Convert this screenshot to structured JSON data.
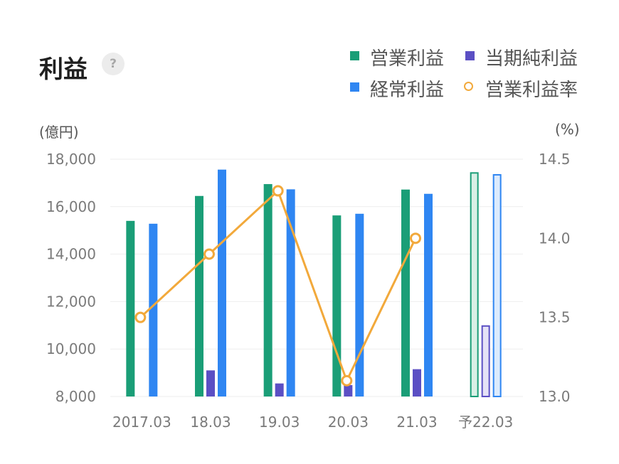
{
  "header": {
    "title": "利益",
    "help_label": "?"
  },
  "legend": [
    {
      "label": "営業利益",
      "color": "#1a9e77"
    },
    {
      "label": "当期純利益",
      "color": "#5b4fc4"
    },
    {
      "label": "経常利益",
      "color": "#2f86f2"
    },
    {
      "label": "営業利益率",
      "color": "#f2a93b"
    }
  ],
  "axes": {
    "left_unit": "(億円)",
    "right_unit": "(%)"
  },
  "chart_data": {
    "type": "bar",
    "categories": [
      "2017.03",
      "18.03",
      "19.03",
      "20.03",
      "21.03",
      "予22.03"
    ],
    "series": [
      {
        "name": "営業利益",
        "type": "bar",
        "axis": "left",
        "color": "#1a9e77",
        "values": [
          15400,
          16450,
          16950,
          15630,
          16720,
          17450
        ],
        "forecast_last": true
      },
      {
        "name": "当期純利益",
        "type": "bar",
        "axis": "left",
        "color": "#5b4fc4",
        "values": [
          null,
          9100,
          8550,
          8480,
          9150,
          11000
        ],
        "forecast_last": true
      },
      {
        "name": "経常利益",
        "type": "bar",
        "axis": "left",
        "color": "#2f86f2",
        "values": [
          15280,
          17560,
          16730,
          15700,
          16540,
          17370
        ],
        "forecast_last": true
      },
      {
        "name": "営業利益率",
        "type": "line",
        "axis": "right",
        "color": "#f2a93b",
        "values": [
          13.5,
          13.9,
          14.3,
          13.1,
          14.0,
          null
        ]
      }
    ],
    "y_left": {
      "ticks": [
        "8,000",
        "10,000",
        "12,000",
        "14,000",
        "16,000",
        "18,000"
      ],
      "range": [
        8000,
        18000
      ]
    },
    "y_right": {
      "ticks": [
        "13.0",
        "13.5",
        "14.0",
        "14.5"
      ],
      "range": [
        13.0,
        14.5
      ]
    },
    "grid": true,
    "legend_position": "top-right"
  }
}
